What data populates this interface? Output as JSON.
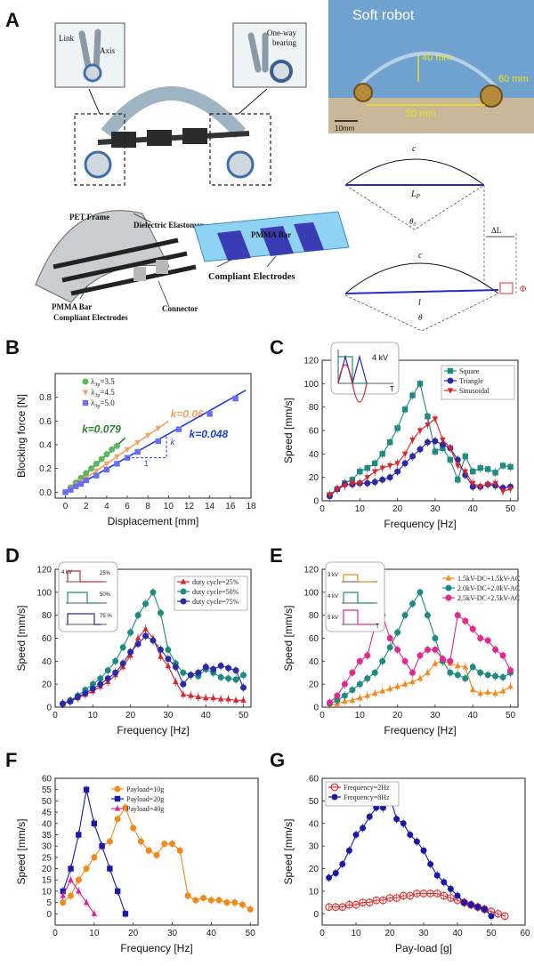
{
  "panels": {
    "A": "A",
    "B": "B",
    "C": "C",
    "D": "D",
    "E": "E",
    "F": "F",
    "G": "G"
  },
  "panel_a": {
    "photo_title": "Soft robot",
    "dim_height": "40 mm",
    "dim_width": "50 mm",
    "dim_wheel": "60 mm",
    "scale_bar": "10mm",
    "inset_left": {
      "link": "Link",
      "axis": "Axis"
    },
    "inset_right": {
      "bearing": "One-way\nbearing"
    },
    "labels": {
      "pet_frame": "PET Frame",
      "dielectric": "Dielectric Elastomer",
      "pmma_bar": "PMMA Bar",
      "compliant_small": "Compliant Electrodes",
      "connector": "Connector",
      "pmma_bar_detail": "PMMA Bar",
      "compliant_large": "Compliant Electrodes"
    },
    "geometry": {
      "c_top": "c",
      "lp": "L",
      "lp_sub": "P",
      "theta0": "θ",
      "theta0_sub": "0",
      "delta_l": "ΔL",
      "c_bottom": "c",
      "l": "l",
      "theta": "θ",
      "phi": "Φ"
    }
  },
  "chart_data": [
    {
      "id": "B",
      "type": "scatter",
      "xlabel": "Displacement [mm]",
      "ylabel": "Blocking force  [N]",
      "xlim": [
        -1,
        18
      ],
      "ylim": [
        -0.05,
        1.0
      ],
      "xticks": [
        0,
        2,
        4,
        6,
        8,
        10,
        12,
        14,
        16,
        18
      ],
      "yticks": [
        0.0,
        0.2,
        0.4,
        0.6,
        0.8
      ],
      "legend_position": "top-left",
      "series": [
        {
          "name": "λ_3p=3.5",
          "legend": "λ",
          "sub": "3p",
          "value": "=3.5",
          "color": "#5bb85d",
          "marker": "circle",
          "x": [
            0,
            0.5,
            1,
            1.5,
            2,
            2.5,
            3,
            3.5,
            4,
            4.5,
            5
          ],
          "y": [
            0.0,
            0.04,
            0.08,
            0.12,
            0.16,
            0.2,
            0.24,
            0.28,
            0.32,
            0.36,
            0.39
          ],
          "fit_k": "k=0.079",
          "fit_x": [
            0,
            5.8
          ],
          "fit_y": [
            0,
            0.458
          ],
          "fit_color": "#2e7d32"
        },
        {
          "name": "λ_3p=4.5",
          "legend": "λ",
          "sub": "3p",
          "value": "=4.5",
          "color": "#f4a261",
          "marker": "triangle-down",
          "x": [
            0,
            0.5,
            1,
            1.5,
            2,
            3,
            4,
            5,
            6,
            7,
            8,
            9
          ],
          "y": [
            0.0,
            0.03,
            0.06,
            0.09,
            0.12,
            0.18,
            0.24,
            0.3,
            0.36,
            0.42,
            0.48,
            0.54
          ],
          "fit_k": "k=0.06",
          "fit_x": [
            0,
            10
          ],
          "fit_y": [
            0,
            0.6
          ],
          "fit_color": "#f4a261"
        },
        {
          "name": "λ_3p=5.0",
          "legend": "λ",
          "sub": "3p",
          "value": "=5.0",
          "color": "#6a6ff0",
          "marker": "square",
          "x": [
            0,
            0.5,
            1,
            1.5,
            2,
            3,
            4,
            5,
            6,
            7,
            9,
            11,
            14,
            16.5
          ],
          "y": [
            0.0,
            0.02,
            0.05,
            0.07,
            0.1,
            0.14,
            0.19,
            0.24,
            0.29,
            0.34,
            0.43,
            0.53,
            0.66,
            0.79
          ],
          "fit_k": "k=0.048",
          "fit_x": [
            0,
            17.5
          ],
          "fit_y": [
            0,
            0.86
          ],
          "fit_color": "#1f3fd1"
        }
      ],
      "slope_triangle_label": "k",
      "slope_run_label": "1"
    },
    {
      "id": "C",
      "type": "line",
      "xlabel": "Frequency [Hz]",
      "ylabel": "Speed [mm/s]",
      "xlim": [
        0,
        52
      ],
      "ylim": [
        0,
        120
      ],
      "xticks": [
        0,
        10,
        20,
        30,
        40,
        50
      ],
      "yticks": [
        0,
        20,
        40,
        60,
        80,
        100,
        120
      ],
      "legend_position": "top-right",
      "inset_text": "4 kV",
      "inset_x": "T",
      "x": [
        2,
        4,
        6,
        8,
        10,
        12,
        14,
        16,
        18,
        20,
        22,
        24,
        26,
        28,
        30,
        32,
        34,
        36,
        38,
        40,
        42,
        44,
        46,
        48,
        50
      ],
      "series": [
        {
          "name": "Square",
          "color": "#1f8a80",
          "marker": "square",
          "y": [
            5,
            10,
            15,
            18,
            25,
            28,
            32,
            40,
            50,
            62,
            78,
            90,
            100,
            72,
            42,
            45,
            35,
            18,
            38,
            25,
            28,
            27,
            24,
            30,
            29
          ]
        },
        {
          "name": "Triangle",
          "color": "#2a2aa8",
          "marker": "circle",
          "y": [
            4,
            10,
            14,
            14,
            15,
            15,
            16,
            18,
            20,
            25,
            32,
            38,
            44,
            50,
            51,
            48,
            45,
            35,
            22,
            12,
            12,
            14,
            13,
            11,
            12
          ]
        },
        {
          "name": "Sinusoidal",
          "color": "#d8262e",
          "marker": "triangle-down",
          "y": [
            5,
            10,
            13,
            15,
            15,
            20,
            25,
            28,
            30,
            32,
            40,
            52,
            60,
            65,
            70,
            52,
            45,
            30,
            25,
            15,
            12,
            14,
            15,
            8,
            10
          ]
        }
      ]
    },
    {
      "id": "D",
      "type": "line",
      "xlabel": "Frequency [Hz]",
      "ylabel": "Speed [mm/s]",
      "xlim": [
        0,
        52
      ],
      "ylim": [
        0,
        120
      ],
      "xticks": [
        0,
        10,
        20,
        30,
        40,
        50
      ],
      "yticks": [
        0,
        20,
        40,
        60,
        80,
        100,
        120
      ],
      "legend_position": "top-right",
      "inset_voltage": "4 kV",
      "inset_duty": [
        "25%",
        "50%",
        "75 %"
      ],
      "x": [
        2,
        4,
        6,
        8,
        10,
        12,
        14,
        16,
        18,
        20,
        22,
        24,
        26,
        28,
        30,
        32,
        34,
        36,
        38,
        40,
        42,
        44,
        46,
        48,
        50
      ],
      "series": [
        {
          "name": "duty cycle=25%",
          "color": "#d8262e",
          "marker": "triangle-up",
          "y": [
            3,
            5,
            8,
            11,
            14,
            18,
            22,
            28,
            35,
            45,
            60,
            68,
            60,
            44,
            36,
            22,
            11,
            10,
            9,
            8,
            8,
            7,
            7,
            6,
            6
          ]
        },
        {
          "name": "duty cycle=50%",
          "color": "#1f8a80",
          "marker": "circle",
          "y": [
            3,
            6,
            10,
            15,
            20,
            25,
            32,
            40,
            52,
            65,
            80,
            90,
            100,
            82,
            50,
            38,
            30,
            28,
            27,
            33,
            30,
            26,
            25,
            24,
            28
          ]
        },
        {
          "name": "duty cycle=75%",
          "color": "#2a2aa8",
          "marker": "circle",
          "y": [
            3,
            5,
            9,
            12,
            16,
            20,
            25,
            30,
            38,
            48,
            55,
            62,
            58,
            50,
            42,
            35,
            20,
            28,
            30,
            35,
            33,
            36,
            34,
            32,
            17
          ]
        }
      ]
    },
    {
      "id": "E",
      "type": "line",
      "xlabel": "Frequency [Hz]",
      "ylabel": "Speed [mm/s]",
      "xlim": [
        0,
        52
      ],
      "ylim": [
        0,
        120
      ],
      "xticks": [
        0,
        10,
        20,
        30,
        40,
        50
      ],
      "yticks": [
        0,
        20,
        40,
        60,
        80,
        100,
        120
      ],
      "legend_position": "top-right",
      "inset_voltages": [
        "3 kV",
        "4 kV",
        "5 kV"
      ],
      "inset_x": "T",
      "x": [
        2,
        4,
        6,
        8,
        10,
        12,
        14,
        16,
        18,
        20,
        22,
        24,
        26,
        28,
        30,
        32,
        34,
        36,
        38,
        40,
        42,
        44,
        46,
        48,
        50
      ],
      "series": [
        {
          "name": "1.5kV-DC+1.5kV-AC",
          "color": "#f08a1c",
          "marker": "triangle-up",
          "y": [
            2,
            3,
            5,
            6,
            8,
            10,
            12,
            14,
            16,
            18,
            20,
            22,
            25,
            30,
            38,
            40,
            38,
            36,
            35,
            15,
            12,
            13,
            12,
            14,
            18
          ]
        },
        {
          "name": "2.0kV-DC+2.0kV-AC",
          "color": "#1f8a80",
          "marker": "circle",
          "y": [
            3,
            6,
            10,
            15,
            20,
            25,
            30,
            40,
            52,
            65,
            80,
            90,
            100,
            80,
            60,
            40,
            30,
            28,
            25,
            35,
            30,
            28,
            27,
            26,
            30
          ]
        },
        {
          "name": "2.5kV-DC+2.5kV-AC",
          "color": "#e02a8f",
          "marker": "circle",
          "y": [
            4,
            10,
            20,
            30,
            40,
            45,
            70,
            80,
            60,
            50,
            40,
            30,
            45,
            50,
            50,
            42,
            40,
            80,
            75,
            68,
            60,
            58,
            50,
            45,
            32
          ]
        }
      ]
    },
    {
      "id": "F",
      "type": "line",
      "xlabel": "Frequency [Hz]",
      "ylabel": "Speed [mm/s]",
      "xlim": [
        0,
        52
      ],
      "ylim": [
        -5,
        60
      ],
      "xticks": [
        0,
        10,
        20,
        30,
        40,
        50
      ],
      "yticks": [
        0,
        5,
        10,
        15,
        20,
        25,
        30,
        35,
        40,
        45,
        50,
        55,
        60
      ],
      "legend_position": "top-right",
      "series": [
        {
          "name": "Payload=10g",
          "color": "#f08a1c",
          "marker": "circle",
          "x": [
            2,
            4,
            6,
            8,
            10,
            12,
            14,
            16,
            18,
            20,
            22,
            24,
            26,
            28,
            30,
            32,
            34,
            36,
            38,
            40,
            42,
            44,
            46,
            48,
            50
          ],
          "y": [
            5,
            8,
            15,
            20,
            25,
            30,
            32,
            42,
            47,
            38,
            32,
            28,
            26,
            31,
            31,
            28,
            8,
            6,
            7,
            6,
            6,
            5,
            5,
            4,
            2
          ]
        },
        {
          "name": "Payload=20g",
          "color": "#1a1aa8",
          "marker": "square",
          "x": [
            2,
            4,
            6,
            8,
            10,
            12,
            14,
            16,
            18
          ],
          "y": [
            10,
            20,
            35,
            55,
            40,
            30,
            20,
            10,
            0
          ]
        },
        {
          "name": "Payload=40g",
          "color": "#e0209a",
          "marker": "triangle-up",
          "x": [
            2,
            4,
            6,
            8,
            10
          ],
          "y": [
            8,
            15,
            10,
            5,
            0
          ]
        }
      ]
    },
    {
      "id": "G",
      "type": "line",
      "xlabel": "Pay-load [g]",
      "ylabel": "Speed [mm/s]",
      "xlim": [
        0,
        60
      ],
      "ylim": [
        -5,
        60
      ],
      "xticks": [
        0,
        10,
        20,
        30,
        40,
        50,
        60
      ],
      "yticks": [
        0,
        10,
        20,
        30,
        40,
        50,
        60
      ],
      "legend_position": "top-left",
      "series": [
        {
          "name": "Frequency=2Hz",
          "color": "#e23030",
          "marker": "open-circle",
          "x": [
            2,
            4,
            6,
            8,
            10,
            12,
            14,
            16,
            18,
            20,
            22,
            24,
            26,
            28,
            30,
            32,
            34,
            36,
            38,
            40,
            42,
            44,
            46,
            48,
            50,
            52,
            54
          ],
          "y": [
            3,
            3,
            3,
            4,
            4,
            5,
            5,
            6,
            6,
            7,
            7,
            8,
            8,
            9,
            9,
            9,
            9,
            8,
            7,
            6,
            5,
            4,
            3,
            2,
            1,
            0,
            -1
          ]
        },
        {
          "name": "Frequency=8Hz",
          "color": "#1a1aa8",
          "marker": "circle",
          "x": [
            2,
            4,
            6,
            8,
            10,
            12,
            14,
            16,
            18,
            20,
            22,
            24,
            26,
            28,
            30,
            32,
            34,
            36,
            38,
            40,
            42,
            44,
            46,
            48,
            50
          ],
          "y": [
            16,
            18,
            22,
            28,
            35,
            38,
            43,
            47,
            47,
            52,
            42,
            40,
            35,
            32,
            28,
            22,
            17,
            14,
            11,
            8,
            5,
            4,
            3,
            2,
            -1
          ]
        }
      ]
    }
  ]
}
